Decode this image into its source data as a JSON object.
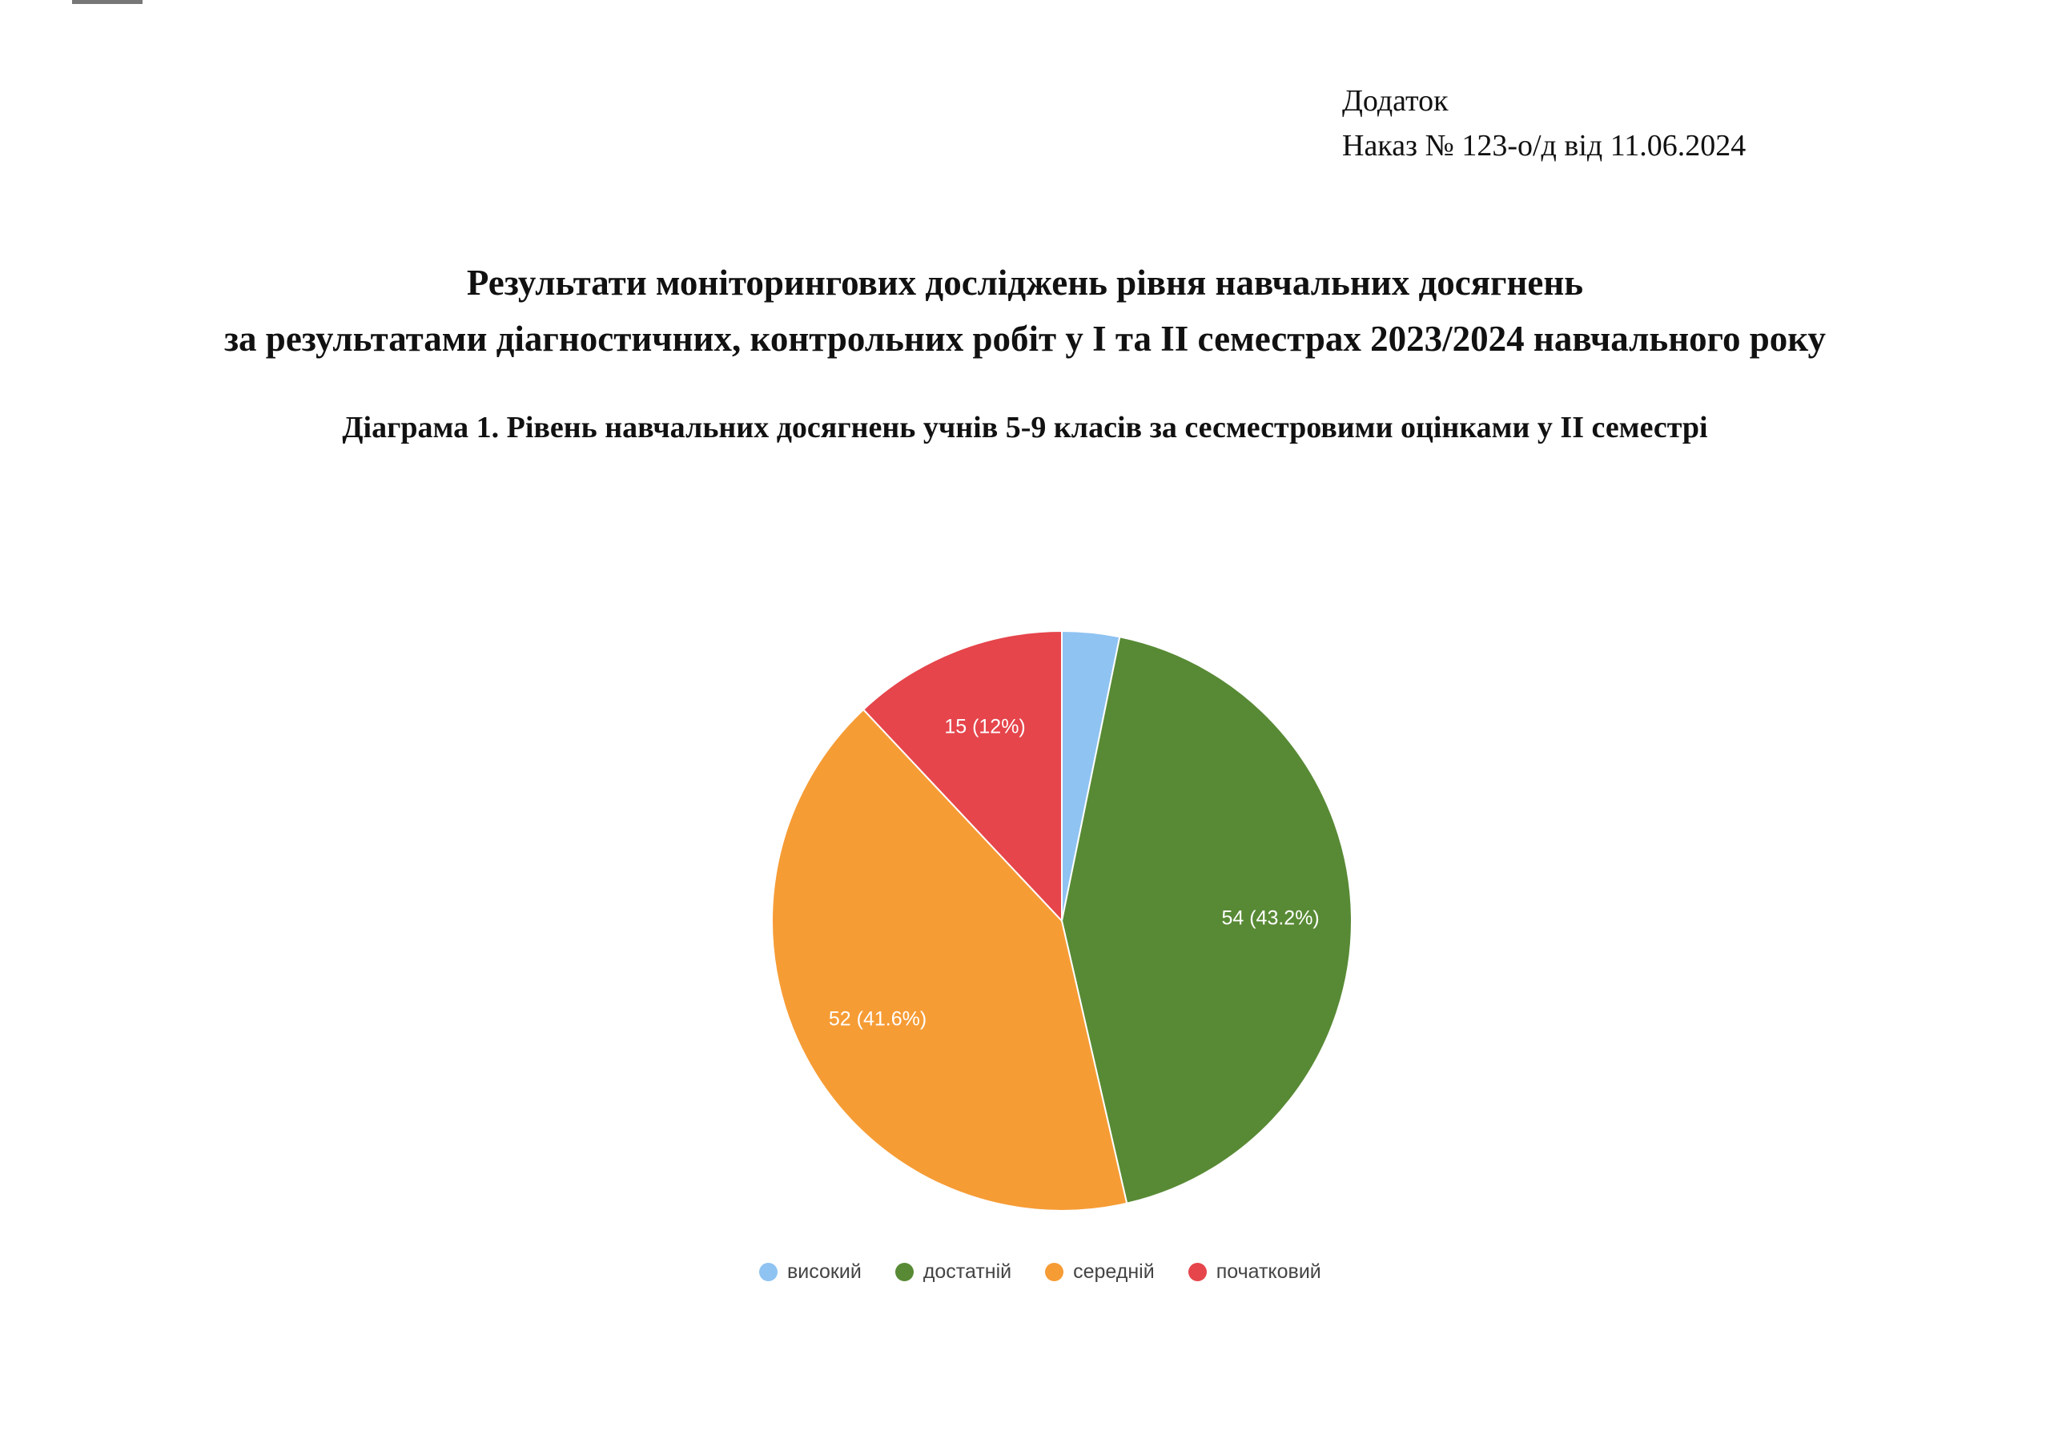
{
  "annex": {
    "line1": "Додаток",
    "line2": "Наказ № 123-о/д від 11.06.2024"
  },
  "title": {
    "line1": "Результати моніторингових досліджень рівня навчальних досягнень",
    "line2": "за результатами діагностичних, контрольних робіт у І та ІІ семестрах 2023/2024 навчального року"
  },
  "chart_data": {
    "type": "pie",
    "title": "Діаграма 1. Рівень навчальних досягнень учнів 5-9 класів за сесместровими оцінками  у  ІІ семестрі",
    "categories": [
      "високий",
      "достатній",
      "середній",
      "початковий"
    ],
    "values": [
      4,
      54,
      52,
      15
    ],
    "labels": [
      "",
      "54 (43.2%)",
      "52 (41.6%)",
      "15 (12%)"
    ],
    "colors": [
      "#8fc3f2",
      "#588a35",
      "#f69c35",
      "#e5454b"
    ],
    "legend_position": "bottom",
    "start_angle": "top, clockwise"
  }
}
